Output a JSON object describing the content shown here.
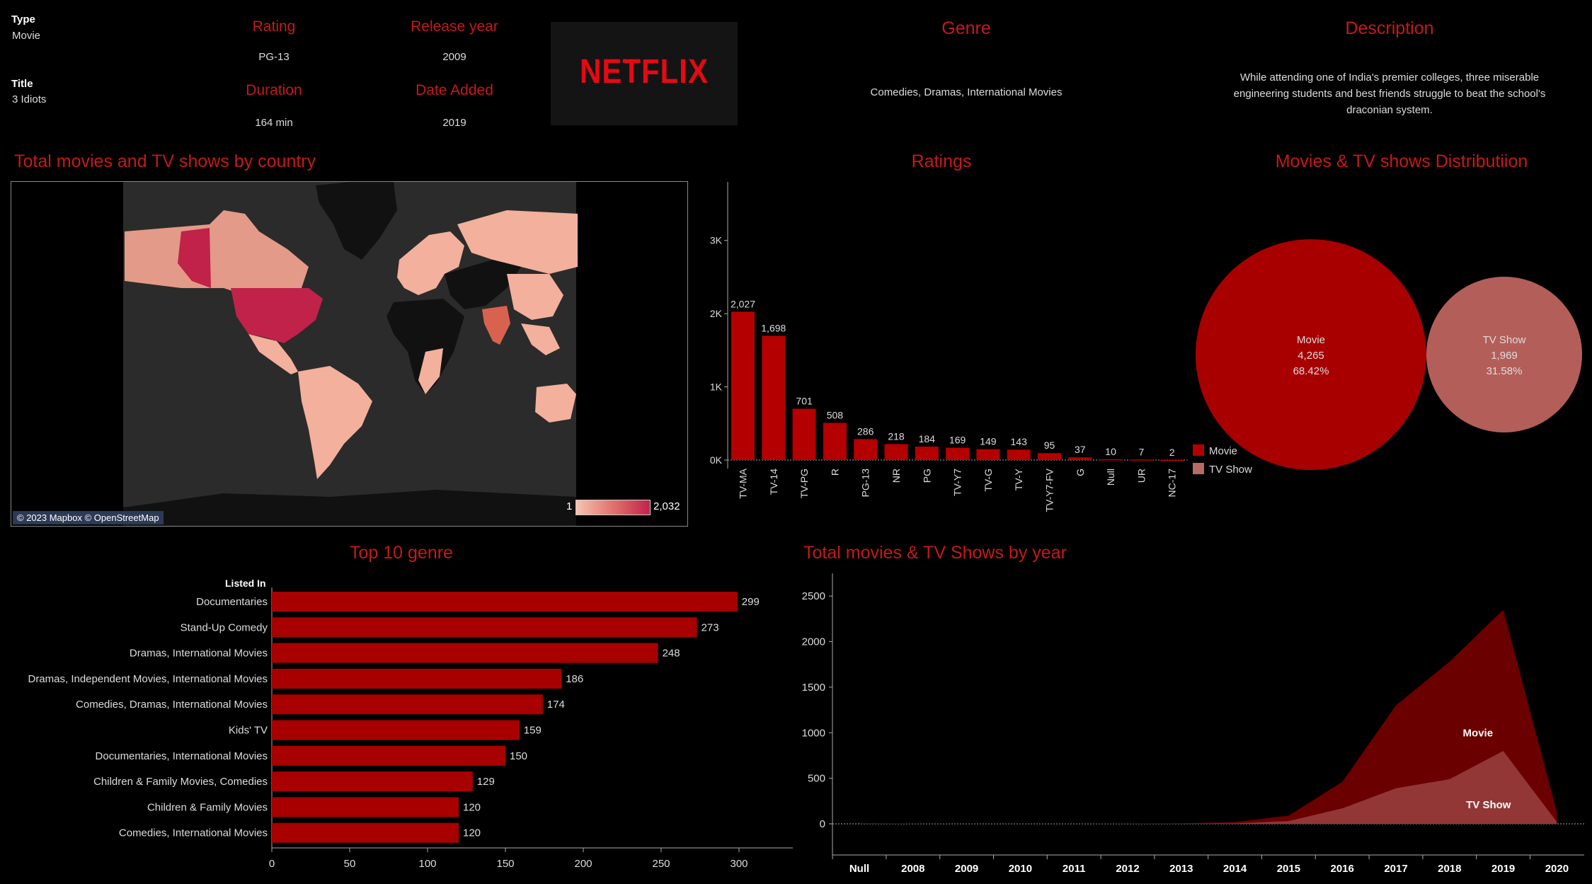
{
  "info": {
    "type_label": "Type",
    "type_value": "Movie",
    "title_label": "Title",
    "title_value": "3 Idiots",
    "rating_label": "Rating",
    "rating_value": "PG-13",
    "release_label": "Release year",
    "release_value": "2009",
    "duration_label": "Duration",
    "duration_value": "164 min",
    "date_added_label": "Date Added",
    "date_added_value": "2019",
    "logo_text": "NETFLIX",
    "genre_label": "Genre",
    "genre_value": "Comedies, Dramas, International Movies",
    "description_label": "Description",
    "description_value": "While attending one of India's premier colleges, three miserable engineering students and best friends struggle to beat the school's draconian system."
  },
  "map": {
    "title": "Total movies and TV shows by country",
    "attribution": "© 2023 Mapbox © OpenStreetMap",
    "legend_min": "1",
    "legend_max": "2,032",
    "colors": {
      "ocean": "#2b2b2b",
      "low": "#f3b09c",
      "high": "#c0224a",
      "nodata": "#111111"
    }
  },
  "ratings": {
    "title": "Ratings",
    "legend": [
      {
        "name": "Movie",
        "color": "#b40000"
      },
      {
        "name": "TV Show",
        "color": "#b86a66"
      }
    ]
  },
  "distribution": {
    "title": "Movies & TV shows Distributiion",
    "movie": {
      "name": "Movie",
      "count": "4,265",
      "pct": "68.42%",
      "color": "#a80000"
    },
    "tv": {
      "name": "TV Show",
      "count": "1,969",
      "pct": "31.58%",
      "color": "#b45e5a"
    }
  },
  "genres": {
    "title": "Top 10 genre",
    "header": "Listed In"
  },
  "years": {
    "title": "Total movies & TV Shows by year",
    "movie_label": "Movie",
    "tv_label": "TV Show"
  },
  "chart_data": [
    {
      "type": "bar",
      "title": "Ratings",
      "categories": [
        "TV-MA",
        "TV-14",
        "TV-PG",
        "R",
        "PG-13",
        "NR",
        "PG",
        "TV-Y7",
        "TV-G",
        "TV-Y",
        "TV-Y7-FV",
        "G",
        "Null",
        "UR",
        "NC-17"
      ],
      "values": [
        2027,
        1698,
        701,
        508,
        286,
        218,
        184,
        169,
        149,
        143,
        95,
        37,
        10,
        7,
        2
      ],
      "value_labels": [
        "2,027",
        "1,698",
        "701",
        "508",
        "286",
        "218",
        "184",
        "169",
        "149",
        "143",
        "95",
        "37",
        "10",
        "7",
        "2"
      ],
      "yticks": [
        "0K",
        "1K",
        "2K",
        "3K"
      ],
      "ylim": [
        0,
        3800
      ]
    },
    {
      "type": "bar",
      "title": "Top 10 genre",
      "orientation": "horizontal",
      "categories": [
        "Documentaries",
        "Stand-Up Comedy",
        "Dramas, International Movies",
        "Dramas, Independent Movies, International Movies",
        "Comedies, Dramas, International Movies",
        "Kids' TV",
        "Documentaries, International Movies",
        "Children & Family Movies, Comedies",
        "Children & Family Movies",
        "Comedies, International Movies"
      ],
      "values": [
        299,
        273,
        248,
        186,
        174,
        159,
        150,
        129,
        120,
        120
      ],
      "xticks": [
        0,
        50,
        100,
        150,
        200,
        250,
        300
      ],
      "xlim": [
        0,
        320
      ]
    },
    {
      "type": "area",
      "title": "Total movies & TV Shows by year",
      "x": [
        "Null",
        "2008",
        "2009",
        "2010",
        "2011",
        "2012",
        "2013",
        "2014",
        "2015",
        "2016",
        "2017",
        "2018",
        "2019",
        "2020"
      ],
      "series": [
        {
          "name": "Movie",
          "values": [
            10,
            2,
            1,
            1,
            1,
            3,
            6,
            20,
            90,
            460,
            1300,
            1780,
            2350,
            130
          ]
        },
        {
          "name": "TV Show",
          "values": [
            0,
            0,
            0,
            0,
            0,
            0,
            1,
            5,
            30,
            170,
            390,
            490,
            800,
            20
          ]
        }
      ],
      "yticks": [
        0,
        500,
        1000,
        1500,
        2000,
        2500
      ],
      "ylim": [
        0,
        2750
      ]
    },
    {
      "type": "pie",
      "title": "Movies & TV shows Distributiion",
      "categories": [
        "Movie",
        "TV Show"
      ],
      "values": [
        4265,
        1969
      ]
    }
  ]
}
